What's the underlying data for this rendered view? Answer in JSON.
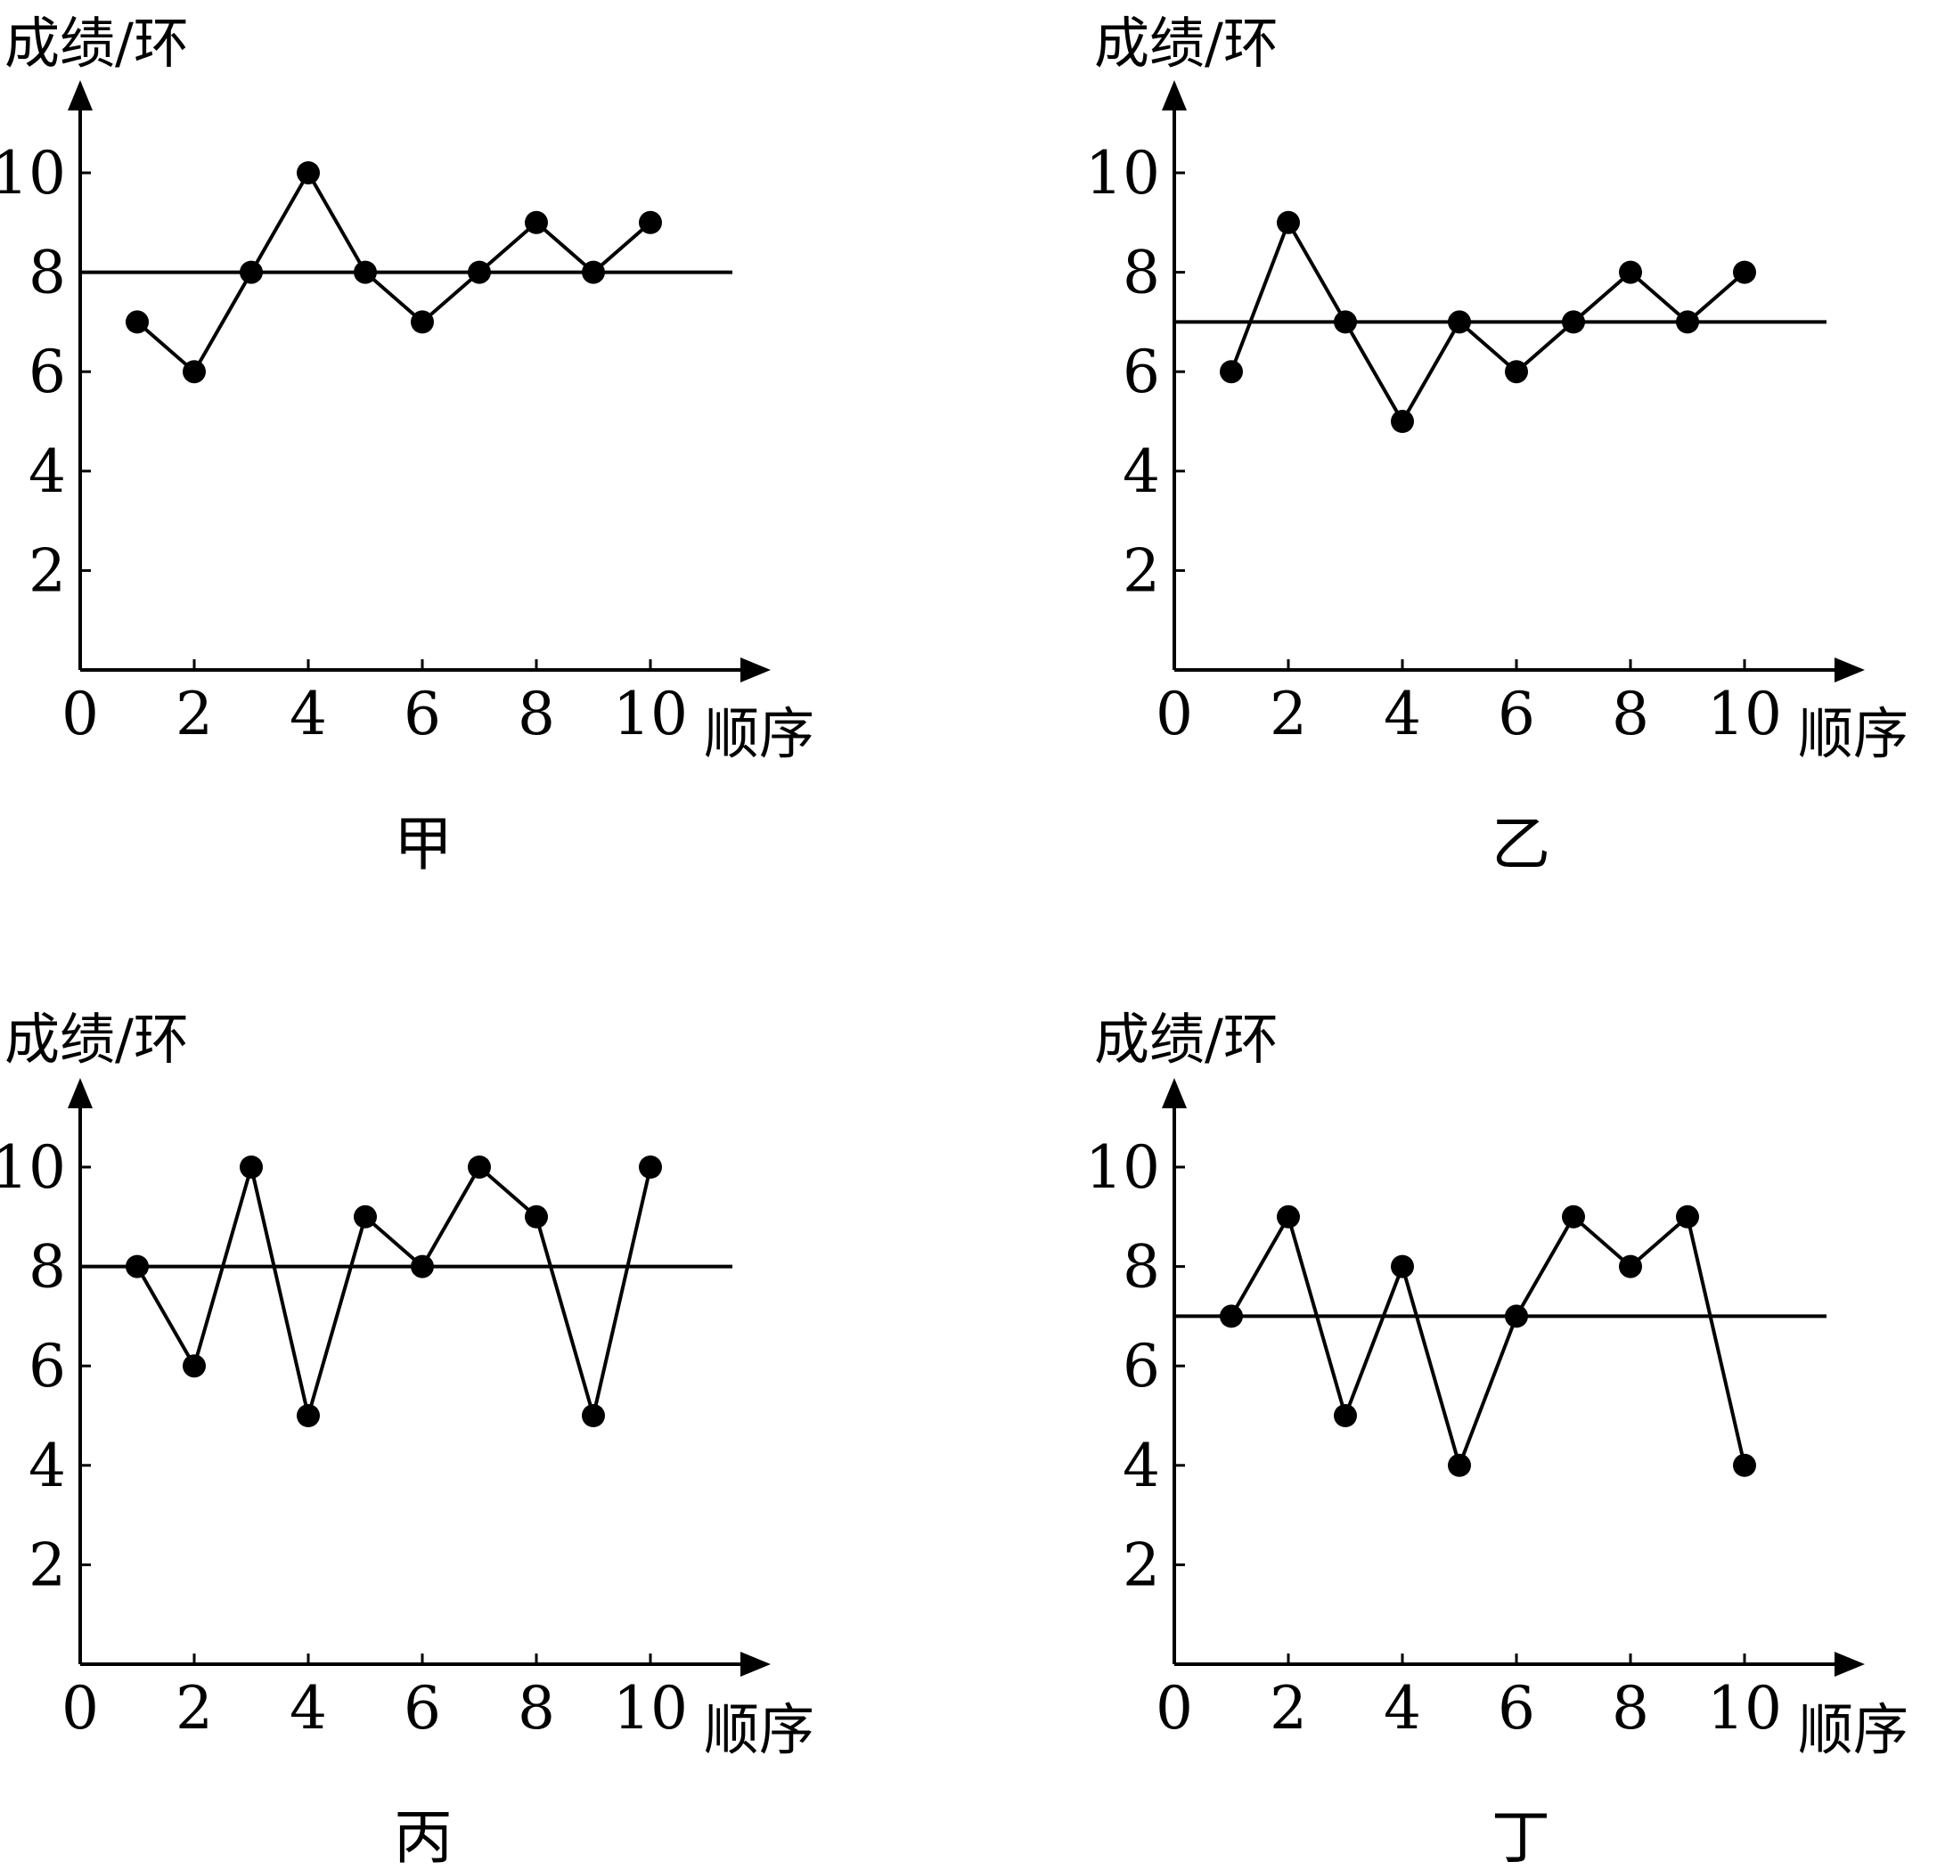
{
  "chart_data": [
    {
      "type": "line",
      "title": "甲",
      "ylabel": "成绩/环",
      "xlabel": "顺序",
      "x_ticks": [
        "0",
        "2",
        "4",
        "6",
        "8",
        "10"
      ],
      "y_ticks": [
        "2",
        "4",
        "6",
        "8",
        "10"
      ],
      "xlim": [
        0,
        11.5
      ],
      "ylim": [
        0,
        11.5
      ],
      "x": [
        1,
        2,
        3,
        4,
        5,
        6,
        7,
        8,
        9,
        10
      ],
      "values": [
        7,
        6,
        8,
        10,
        8,
        7,
        8,
        9,
        8,
        9
      ],
      "reference_line": 8
    },
    {
      "type": "line",
      "title": "乙",
      "ylabel": "成绩/环",
      "xlabel": "顺序",
      "x_ticks": [
        "0",
        "2",
        "4",
        "6",
        "8",
        "10"
      ],
      "y_ticks": [
        "2",
        "4",
        "6",
        "8",
        "10"
      ],
      "xlim": [
        0,
        11.5
      ],
      "ylim": [
        0,
        11.5
      ],
      "x": [
        1,
        2,
        3,
        4,
        5,
        6,
        7,
        8,
        9,
        10
      ],
      "values": [
        6,
        9,
        7,
        5,
        7,
        6,
        7,
        8,
        7,
        8
      ],
      "reference_line": 7
    },
    {
      "type": "line",
      "title": "丙",
      "ylabel": "成绩/环",
      "xlabel": "顺序",
      "x_ticks": [
        "0",
        "2",
        "4",
        "6",
        "8",
        "10"
      ],
      "y_ticks": [
        "2",
        "4",
        "6",
        "8",
        "10"
      ],
      "xlim": [
        0,
        11.5
      ],
      "ylim": [
        0,
        11.5
      ],
      "x": [
        1,
        2,
        3,
        4,
        5,
        6,
        7,
        8,
        9,
        10
      ],
      "values": [
        8,
        6,
        10,
        5,
        9,
        8,
        10,
        9,
        5,
        10
      ],
      "reference_line": 8
    },
    {
      "type": "line",
      "title": "丁",
      "ylabel": "成绩/环",
      "xlabel": "顺序",
      "x_ticks": [
        "0",
        "2",
        "4",
        "6",
        "8",
        "10"
      ],
      "y_ticks": [
        "2",
        "4",
        "6",
        "8",
        "10"
      ],
      "xlim": [
        0,
        11.5
      ],
      "ylim": [
        0,
        11.5
      ],
      "x": [
        1,
        2,
        3,
        4,
        5,
        6,
        7,
        8,
        9,
        10
      ],
      "values": [
        7,
        9,
        5,
        8,
        4,
        7,
        9,
        8,
        9,
        4
      ],
      "reference_line": 7
    }
  ]
}
